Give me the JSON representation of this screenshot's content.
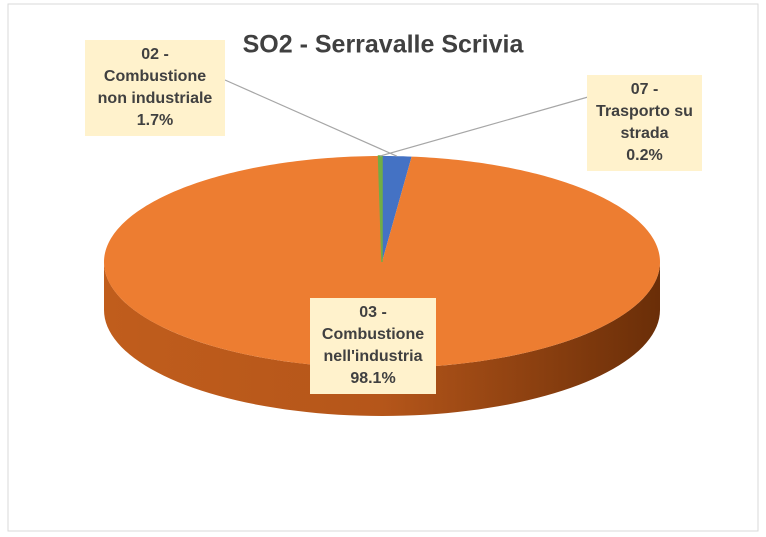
{
  "chart_data": {
    "type": "pie",
    "title": "SO2 - Serravalle Scrivia",
    "categories": [
      "02 - Combustione non industriale",
      "03 - Combustione nell'industria",
      "07 - Trasporto su strada"
    ],
    "values": [
      1.7,
      98.1,
      0.2
    ],
    "value_labels": [
      "1.7%",
      "98.1%",
      "0.2%"
    ],
    "colors": [
      "#4472c4",
      "#ed7d31",
      "#70ad47"
    ]
  }
}
